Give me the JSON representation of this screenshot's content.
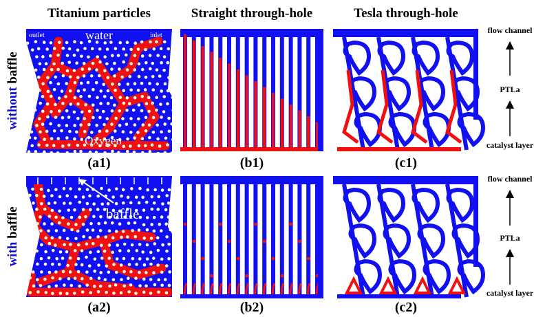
{
  "headers": [
    "Titanium particles",
    "Straight through-hole",
    "Tesla through-hole"
  ],
  "rows": [
    {
      "label": [
        "without",
        "baffle"
      ],
      "panels": [
        "(a1)",
        "(b1)",
        "(c1)"
      ],
      "annotations": {
        "outlet": "outlet",
        "water": "water",
        "inlet": "inlet",
        "oxygen": "Oxygen"
      },
      "side": [
        "flow channel",
        "PTLa",
        "catalyst layer"
      ]
    },
    {
      "label": [
        "with",
        "baffle"
      ],
      "panels": [
        "(a2)",
        "(b2)",
        "(c2)"
      ],
      "annotations": {
        "baffle": "baffle"
      },
      "side": [
        "flow channel",
        "PTLa",
        "catalyst layer"
      ]
    }
  ]
}
